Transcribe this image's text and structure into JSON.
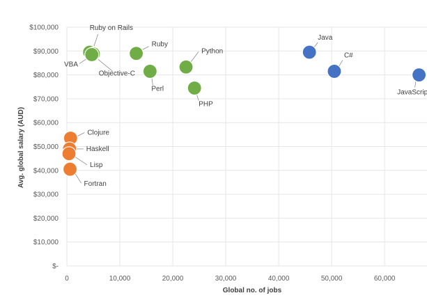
{
  "chart_data": {
    "type": "scatter",
    "title": "",
    "xlabel": "Global no. of jobs",
    "ylabel": "Avg. global salary (AUD)",
    "xlim": [
      0,
      68000
    ],
    "ylim": [
      0,
      100000
    ],
    "xticks": [
      0,
      10000,
      20000,
      30000,
      40000,
      50000,
      60000
    ],
    "xtick_labels": [
      "0",
      "10,000",
      "20,000",
      "30,000",
      "40,000",
      "50,000",
      "60,000"
    ],
    "yticks": [
      0,
      10000,
      20000,
      30000,
      40000,
      50000,
      60000,
      70000,
      80000,
      90000,
      100000
    ],
    "ytick_labels": [
      "$-",
      "$10,000",
      "$20,000",
      "$30,000",
      "$40,000",
      "$50,000",
      "$60,000",
      "$70,000",
      "$80,000",
      "$90,000",
      "$100,000"
    ],
    "grid": true,
    "legend": "none",
    "colors": {
      "blue": "#4472c4",
      "green": "#70ad47",
      "orange": "#ed7d31"
    },
    "points": [
      {
        "label": "Java",
        "x": 45800,
        "y": 89500,
        "color": "blue"
      },
      {
        "label": "C#",
        "x": 50500,
        "y": 81500,
        "color": "blue"
      },
      {
        "label": "JavaScript",
        "x": 66500,
        "y": 80000,
        "color": "blue"
      },
      {
        "label": "Ruby on Rails",
        "x": 4300,
        "y": 89500,
        "color": "green"
      },
      {
        "label": "VBA",
        "x": 5000,
        "y": 88800,
        "color": "green"
      },
      {
        "label": "Objective-C",
        "x": 4700,
        "y": 88500,
        "color": "green"
      },
      {
        "label": "Ruby",
        "x": 13100,
        "y": 89000,
        "color": "green"
      },
      {
        "label": "Perl",
        "x": 15700,
        "y": 81500,
        "color": "green"
      },
      {
        "label": "Python",
        "x": 22500,
        "y": 83300,
        "color": "green"
      },
      {
        "label": "PHP",
        "x": 24100,
        "y": 74500,
        "color": "green"
      },
      {
        "label": "Clojure",
        "x": 700,
        "y": 53500,
        "color": "orange"
      },
      {
        "label": "Haskell",
        "x": 500,
        "y": 49000,
        "color": "orange"
      },
      {
        "label": "Lisp",
        "x": 400,
        "y": 47000,
        "color": "orange"
      },
      {
        "label": "Fortran",
        "x": 600,
        "y": 40500,
        "color": "orange"
      }
    ]
  }
}
